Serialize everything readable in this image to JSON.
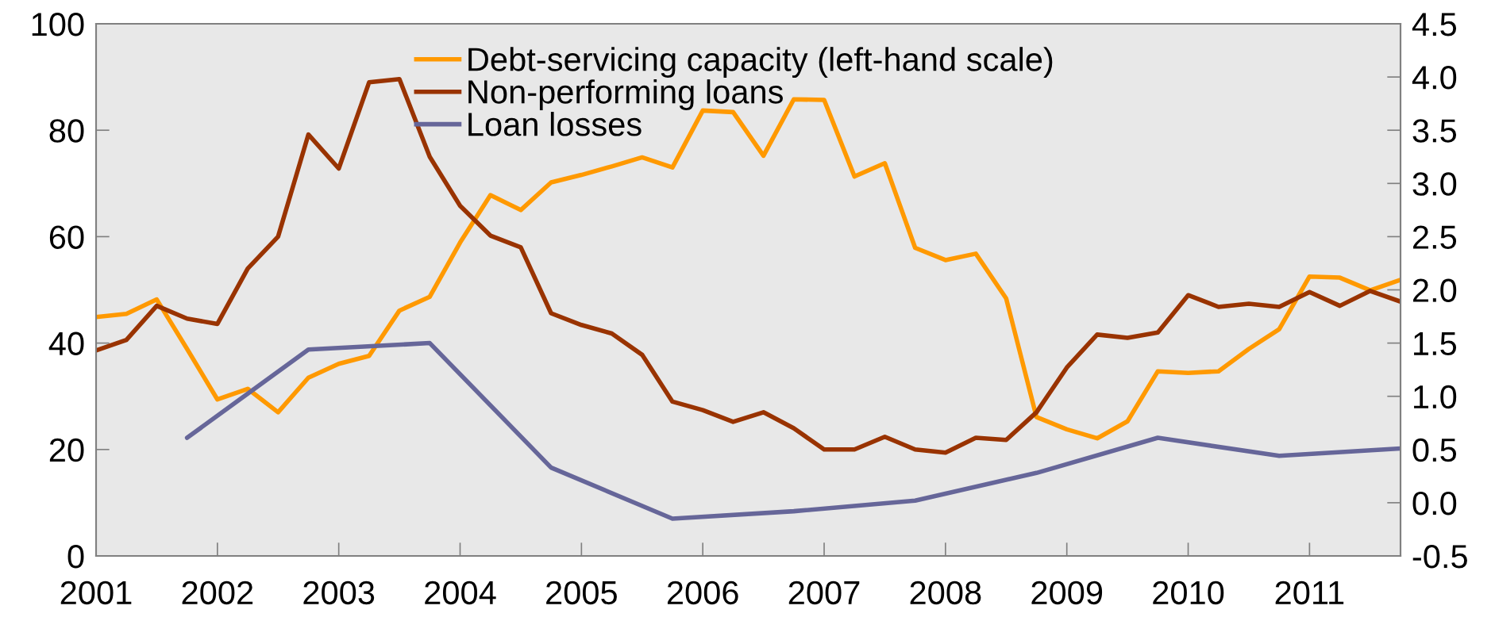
{
  "chart_data": {
    "type": "line",
    "x": [
      2001,
      2001.25,
      2001.5,
      2001.75,
      2002,
      2002.25,
      2002.5,
      2002.75,
      2003,
      2003.25,
      2003.5,
      2003.75,
      2004,
      2004.25,
      2004.5,
      2004.75,
      2005,
      2005.25,
      2005.5,
      2005.75,
      2006,
      2006.25,
      2006.5,
      2006.75,
      2007,
      2007.25,
      2007.5,
      2007.75,
      2008,
      2008.25,
      2008.5,
      2008.75,
      2009,
      2009.25,
      2009.5,
      2009.75,
      2010,
      2010.25,
      2010.5,
      2010.75,
      2011,
      2011.25,
      2011.5,
      2011.75
    ],
    "series": [
      {
        "name": "Debt-servicing capacity (left-hand scale)",
        "color": "#ff9900",
        "values": [
          44.9,
          45.5,
          48.2,
          38.9,
          29.4,
          31.4,
          27.0,
          33.5,
          36.1,
          37.6,
          46.1,
          48.7,
          58.9,
          67.8,
          65.0,
          70.2,
          71.6,
          73.2,
          74.9,
          73.0,
          83.7,
          83.4,
          75.2,
          85.8,
          85.7,
          71.3,
          73.8,
          57.9,
          55.6,
          56.8,
          48.4,
          26.1,
          23.8,
          22.1,
          25.3,
          34.7,
          34.4,
          34.7,
          38.9,
          42.6,
          52.5,
          52.3,
          49.9,
          51.9
        ]
      },
      {
        "name": "Non-performing loans",
        "color": "#993300",
        "axis": "y2",
        "values": [
          1.43,
          1.53,
          1.85,
          1.73,
          1.68,
          2.2,
          2.5,
          3.46,
          3.14,
          3.95,
          3.98,
          3.25,
          2.79,
          2.51,
          2.4,
          1.78,
          1.67,
          1.59,
          1.39,
          0.95,
          0.87,
          0.76,
          0.85,
          0.7,
          0.5,
          0.5,
          0.62,
          0.5,
          0.47,
          0.61,
          0.59,
          0.85,
          1.27,
          1.58,
          1.55,
          1.6,
          1.95,
          1.84,
          1.87,
          1.84,
          1.98,
          1.85,
          1.99,
          1.89
        ]
      },
      {
        "name": "Loan losses",
        "color": "#666699",
        "axis": "y2",
        "x": [
          2001.75,
          2002.75,
          2003.75,
          2004.75,
          2005.75,
          2006.75,
          2007.75,
          2008.75,
          2009.75,
          2010.75,
          2011.75
        ],
        "values": [
          0.61,
          1.44,
          1.5,
          0.33,
          -0.15,
          -0.08,
          0.02,
          0.28,
          0.61,
          0.44,
          0.51
        ]
      }
    ],
    "xlim": [
      2001,
      2011.75
    ],
    "xticks": [
      2001,
      2002,
      2003,
      2004,
      2005,
      2006,
      2007,
      2008,
      2009,
      2010,
      2011
    ],
    "ylim": [
      0,
      100
    ],
    "yticks": [
      0,
      20,
      40,
      60,
      80,
      100
    ],
    "y2lim": [
      -0.5,
      4.5
    ],
    "y2ticks": [
      {
        "value": -0.5,
        "label": "-0.5"
      },
      {
        "value": 0,
        "label": "0.0"
      },
      0.5,
      {
        "value": 1,
        "label": "1.0"
      },
      1.5,
      {
        "value": 2,
        "label": "2.0"
      },
      2.5,
      {
        "value": 3,
        "label": "3.0"
      },
      3.5,
      {
        "value": 4,
        "label": "4.0"
      },
      4.5
    ],
    "legend": "top",
    "grid": false,
    "marker": "none",
    "line_style": "solid"
  }
}
